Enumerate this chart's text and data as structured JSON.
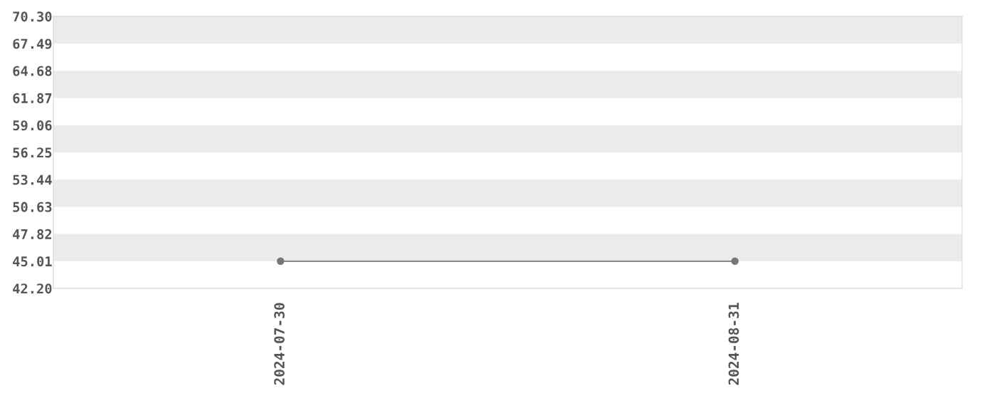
{
  "chart_data": {
    "type": "line",
    "categories": [
      "2024-07-30",
      "2024-08-31"
    ],
    "series": [
      {
        "color": "#777777",
        "values": [
          45.01,
          45.01
        ]
      }
    ],
    "ylim": [
      42.2,
      70.3
    ],
    "yticks": [
      {
        "value": 42.2,
        "label": "42.20"
      },
      45.01,
      47.82,
      50.63,
      53.44,
      56.25,
      59.06,
      61.87,
      64.68,
      67.49,
      {
        "value": 70.3,
        "label": "70.30"
      }
    ],
    "bands": [
      {
        "axis": "y",
        "from": 45.01,
        "to": 47.82,
        "color": "#ebebeb"
      },
      {
        "axis": "y",
        "from": 50.63,
        "to": 53.44,
        "color": "#ebebeb"
      },
      {
        "axis": "y",
        "from": 56.25,
        "to": 59.06,
        "color": "#ebebeb"
      },
      {
        "axis": "y",
        "from": 61.87,
        "to": 64.68,
        "color": "#ebebeb"
      },
      {
        "axis": "y",
        "from": 67.49,
        "to": 70.3,
        "color": "#ebebeb"
      }
    ],
    "marker": "circle",
    "line_style": "solid"
  }
}
